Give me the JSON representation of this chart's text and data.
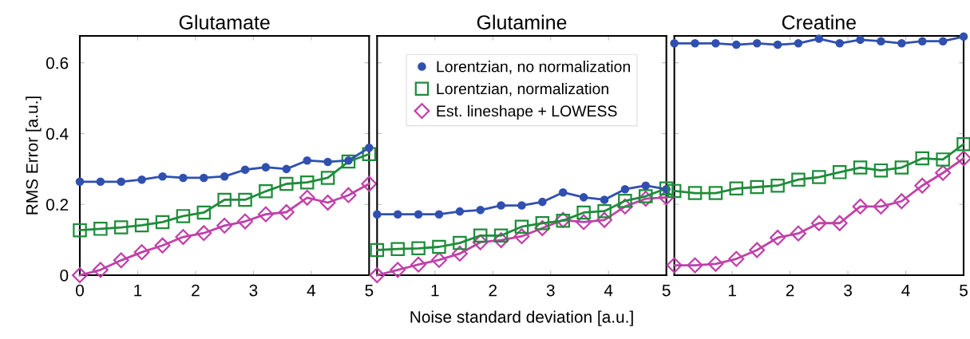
{
  "chart_data": [
    {
      "type": "line",
      "title": "Glutamate",
      "ylabel": "RMS Error [a.u.]",
      "x": [
        0,
        0.357,
        0.714,
        1.071,
        1.429,
        1.786,
        2.143,
        2.5,
        2.857,
        3.214,
        3.571,
        3.929,
        4.286,
        4.643,
        5
      ],
      "xlim": [
        0,
        5
      ],
      "xticks": [
        0,
        1,
        2,
        3,
        4,
        5
      ],
      "ylim": [
        0,
        0.676
      ],
      "yticks": [
        0,
        0.2,
        0.4,
        0.6
      ],
      "legend": false,
      "series": [
        {
          "color": "#3050b0",
          "marker": "circle",
          "values": [
            0.264,
            0.264,
            0.264,
            0.27,
            0.279,
            0.275,
            0.275,
            0.279,
            0.298,
            0.305,
            0.3,
            0.324,
            0.32,
            0.324,
            0.36
          ]
        },
        {
          "color": "#1e8c3a",
          "marker": "square",
          "values": [
            0.127,
            0.131,
            0.135,
            0.141,
            0.15,
            0.167,
            0.177,
            0.213,
            0.213,
            0.237,
            0.258,
            0.262,
            0.275,
            0.321,
            0.342
          ]
        },
        {
          "color": "#c040a8",
          "marker": "diamond",
          "values": [
            0,
            0.015,
            0.042,
            0.065,
            0.084,
            0.108,
            0.119,
            0.14,
            0.152,
            0.172,
            0.178,
            0.219,
            0.205,
            0.226,
            0.258
          ]
        }
      ]
    },
    {
      "type": "line",
      "title": "Glutamine",
      "xlabel": "Noise standard deviation [a.u.]",
      "x": [
        0,
        0.357,
        0.714,
        1.071,
        1.429,
        1.786,
        2.143,
        2.5,
        2.857,
        3.214,
        3.571,
        3.929,
        4.286,
        4.643,
        5
      ],
      "xlim": [
        0,
        5
      ],
      "xticks": [
        {
          "value": 0,
          "label": null
        },
        1,
        2,
        3,
        4,
        5
      ],
      "ylim": [
        0,
        0.676
      ],
      "yticks": [
        0,
        0.2,
        0.4,
        0.6
      ],
      "tick_labels": "x",
      "legend": "top",
      "series": [
        {
          "name": "Lorentzian, no normalization",
          "color": "#3050b0",
          "marker": "circle",
          "values": [
            0.172,
            0.172,
            0.172,
            0.172,
            0.18,
            0.184,
            0.197,
            0.197,
            0.207,
            0.234,
            0.22,
            0.213,
            0.243,
            0.253,
            0.243
          ]
        },
        {
          "name": "Lorentzian, normalization",
          "color": "#1e8c3a",
          "marker": "square",
          "values": [
            0.071,
            0.074,
            0.076,
            0.08,
            0.091,
            0.112,
            0.112,
            0.137,
            0.147,
            0.154,
            0.177,
            0.181,
            0.21,
            0.223,
            0.245
          ]
        },
        {
          "name": "Est. lineshape + LOWESS",
          "color": "#c040a8",
          "marker": "diamond",
          "values": [
            0,
            0.015,
            0.03,
            0.043,
            0.061,
            0.093,
            0.099,
            0.11,
            0.133,
            0.156,
            0.15,
            0.156,
            0.194,
            0.216,
            0.22
          ]
        }
      ]
    },
    {
      "type": "line",
      "title": "Creatine",
      "x": [
        0,
        0.357,
        0.714,
        1.071,
        1.429,
        1.786,
        2.143,
        2.5,
        2.857,
        3.214,
        3.571,
        3.929,
        4.286,
        4.643,
        5
      ],
      "xlim": [
        0,
        5
      ],
      "xticks": [
        {
          "value": 0,
          "label": null
        },
        1,
        2,
        3,
        4,
        5
      ],
      "ylim": [
        0,
        0.676
      ],
      "yticks": [
        0,
        0.2,
        0.4,
        0.6
      ],
      "tick_labels": "x",
      "legend": false,
      "series": [
        {
          "color": "#3050b0",
          "marker": "circle",
          "values": [
            0.655,
            0.655,
            0.655,
            0.651,
            0.655,
            0.651,
            0.655,
            0.668,
            0.655,
            0.665,
            0.661,
            0.655,
            0.661,
            0.661,
            0.674
          ]
        },
        {
          "color": "#1e8c3a",
          "marker": "square",
          "values": [
            0.238,
            0.232,
            0.232,
            0.245,
            0.249,
            0.253,
            0.27,
            0.277,
            0.291,
            0.304,
            0.296,
            0.304,
            0.33,
            0.327,
            0.37
          ]
        },
        {
          "color": "#c040a8",
          "marker": "diamond",
          "values": [
            0.028,
            0.028,
            0.032,
            0.046,
            0.071,
            0.106,
            0.118,
            0.147,
            0.147,
            0.194,
            0.194,
            0.209,
            0.253,
            0.289,
            0.33
          ]
        }
      ]
    }
  ]
}
